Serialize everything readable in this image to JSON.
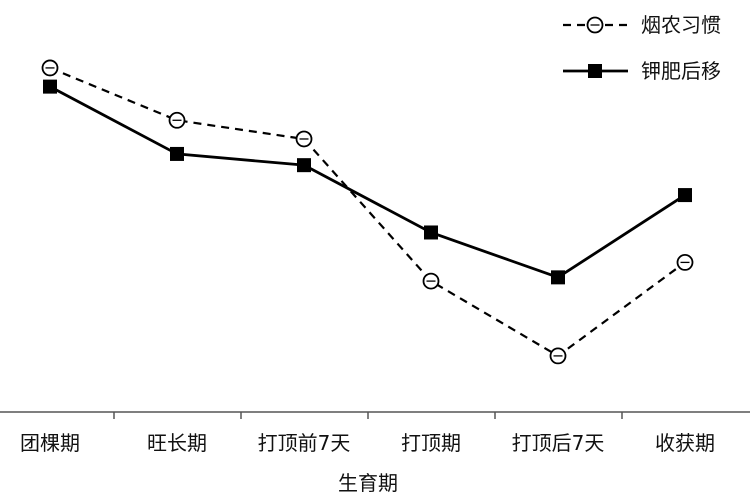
{
  "chart_data": {
    "type": "line",
    "categories": [
      "团棵期",
      "旺长期",
      "打顶前7天",
      "打顶期",
      "打顶后7天",
      "收获期"
    ],
    "xlabel": "生育期",
    "ylabel": "",
    "ylim": [
      0,
      100
    ],
    "grid": false,
    "legend_position": "top-right",
    "series": [
      {
        "name": "烟农习惯",
        "line_style": "dashed",
        "marker": "open-circle",
        "color": "#000000",
        "values": [
          92,
          78,
          73,
          35,
          15,
          40
        ]
      },
      {
        "name": "钾肥后移",
        "line_style": "solid",
        "marker": "filled-square",
        "color": "#000000",
        "values": [
          87,
          69,
          66,
          48,
          36,
          58
        ]
      }
    ]
  }
}
